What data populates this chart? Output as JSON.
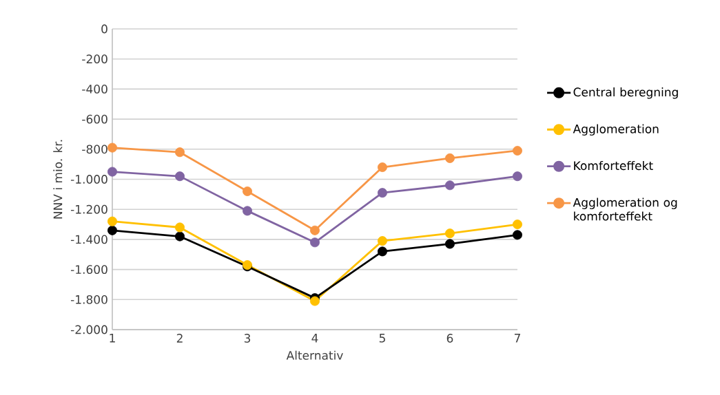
{
  "chart_data": {
    "type": "line",
    "xlabel": "Alternativ",
    "ylabel": "NNV i mio. kr.",
    "x": [
      1,
      2,
      3,
      4,
      5,
      6,
      7
    ],
    "xlim": [
      1,
      7
    ],
    "xticks": [
      1,
      2,
      3,
      4,
      5,
      6,
      7
    ],
    "ylim": [
      -2000,
      0
    ],
    "yticks": [
      {
        "value": -2000,
        "label": "-2.000"
      },
      {
        "value": -1800,
        "label": "-1.800"
      },
      {
        "value": -1600,
        "label": "-1.600"
      },
      {
        "value": -1400,
        "label": "-1.400"
      },
      {
        "value": -1200,
        "label": "-1.200"
      },
      {
        "value": -1000,
        "label": "-1.000"
      },
      {
        "value": -800,
        "label": "-800"
      },
      {
        "value": -600,
        "label": "-600"
      },
      {
        "value": -400,
        "label": "-400"
      },
      {
        "value": -200,
        "label": "-200"
      },
      0
    ],
    "grid": "y",
    "legend": "right",
    "marker": "circle",
    "line_style": "solid",
    "series": [
      {
        "name": "Central beregning",
        "color": "#000000",
        "values": [
          -1340,
          -1380,
          -1580,
          -1790,
          -1480,
          -1430,
          -1370
        ]
      },
      {
        "name": "Agglomeration",
        "color": "#ffc000",
        "values": [
          -1280,
          -1320,
          -1570,
          -1810,
          -1410,
          -1360,
          -1300
        ]
      },
      {
        "name": "Komforteffekt",
        "color": "#8064a2",
        "values": [
          -950,
          -980,
          -1210,
          -1420,
          -1090,
          -1040,
          -980
        ]
      },
      {
        "name": "Agglomeration og komforteffekt",
        "color": "#f79646",
        "values": [
          -790,
          -820,
          -1080,
          -1340,
          -920,
          -860,
          -810
        ]
      }
    ]
  }
}
